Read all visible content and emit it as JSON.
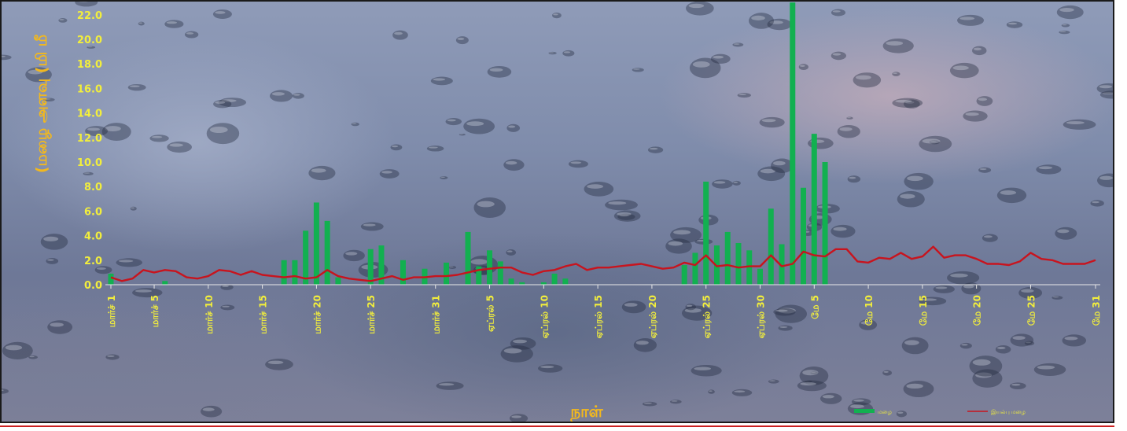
{
  "chart_data": {
    "type": "bar",
    "ylabel": "(மழை அளவு (மி மீ",
    "xlabel": "நாள்",
    "ylim": [
      0,
      24
    ],
    "yticks": [
      "0.0",
      "2.0",
      "4.0",
      "6.0",
      "8.0",
      "10.0",
      "12.0",
      "14.0",
      "16.0",
      "18.0",
      "20.0",
      "22.0"
    ],
    "x_tick_labels": [
      {
        "index": 0,
        "label": "மார்ச் 1"
      },
      {
        "index": 4,
        "label": "மார்ச் 5"
      },
      {
        "index": 9,
        "label": "மார்ச் 10"
      },
      {
        "index": 14,
        "label": "மார்ச் 15"
      },
      {
        "index": 19,
        "label": "மார்ச் 20"
      },
      {
        "index": 24,
        "label": "மார்ச் 25"
      },
      {
        "index": 30,
        "label": "மார்ச் 31"
      },
      {
        "index": 35,
        "label": "ஏப்ரல் 5"
      },
      {
        "index": 40,
        "label": "ஏப்ரல் 10"
      },
      {
        "index": 45,
        "label": "ஏப்ரல் 15"
      },
      {
        "index": 50,
        "label": "ஏப்ரல் 20"
      },
      {
        "index": 55,
        "label": "ஏப்ரல் 25"
      },
      {
        "index": 60,
        "label": "ஏப்ரல் 30"
      },
      {
        "index": 65,
        "label": "மே 5"
      },
      {
        "index": 70,
        "label": "மே 10"
      },
      {
        "index": 75,
        "label": "மே 15"
      },
      {
        "index": 80,
        "label": "மே 20"
      },
      {
        "index": 85,
        "label": "மே 25"
      },
      {
        "index": 91,
        "label": "மே 31"
      }
    ],
    "day_count": 92,
    "series": [
      {
        "name": "மழை",
        "type": "bar",
        "color": "#12b050",
        "values": [
          0.9,
          0,
          0,
          0,
          0,
          0.3,
          0,
          0,
          0,
          0,
          0,
          0,
          0,
          0,
          0,
          0,
          2.0,
          2.0,
          4.4,
          6.7,
          5.2,
          0.6,
          0,
          0,
          2.9,
          3.2,
          0,
          2.0,
          0,
          1.3,
          0,
          1.8,
          0,
          4.3,
          1.5,
          2.8,
          1.9,
          0.5,
          0.2,
          0,
          0.2,
          0.9,
          0.5,
          0,
          0,
          0,
          0,
          0,
          0,
          0,
          0,
          0,
          0,
          1.6,
          2.6,
          8.4,
          3.2,
          4.3,
          3.4,
          2.8,
          1.3,
          6.2,
          3.3,
          23.0,
          7.9,
          12.3,
          10.0,
          0,
          0,
          0,
          0,
          0,
          0,
          0,
          0,
          0,
          0,
          0,
          0,
          0,
          0,
          0,
          0,
          0,
          0,
          0,
          0,
          0,
          0,
          0,
          0,
          0
        ]
      },
      {
        "name": "இயல்பு மழை",
        "type": "line",
        "color": "#c8141e",
        "values": [
          0.6,
          0.3,
          0.5,
          1.2,
          1.0,
          1.2,
          1.1,
          0.6,
          0.5,
          0.7,
          1.2,
          1.1,
          0.8,
          1.1,
          0.8,
          0.7,
          0.6,
          0.7,
          0.5,
          0.6,
          1.2,
          0.7,
          0.5,
          0.4,
          0.3,
          0.5,
          0.7,
          0.4,
          0.6,
          0.6,
          0.7,
          0.7,
          0.8,
          1.0,
          1.2,
          1.3,
          1.4,
          1.4,
          1.0,
          0.8,
          1.1,
          1.2,
          1.5,
          1.7,
          1.2,
          1.4,
          1.4,
          1.5,
          1.6,
          1.7,
          1.5,
          1.3,
          1.4,
          1.8,
          1.6,
          2.4,
          1.5,
          1.6,
          1.4,
          1.5,
          1.5,
          2.4,
          1.5,
          1.7,
          2.7,
          2.4,
          2.3,
          2.9,
          2.9,
          1.9,
          1.8,
          2.2,
          2.1,
          2.6,
          2.1,
          2.3,
          3.1,
          2.2,
          2.4,
          2.4,
          2.1,
          1.7,
          1.7,
          1.6,
          1.9,
          2.6,
          2.1,
          2.0,
          1.7,
          1.7,
          1.7,
          2.0
        ]
      }
    ],
    "legend_position": "bottom-right",
    "grid": false
  }
}
